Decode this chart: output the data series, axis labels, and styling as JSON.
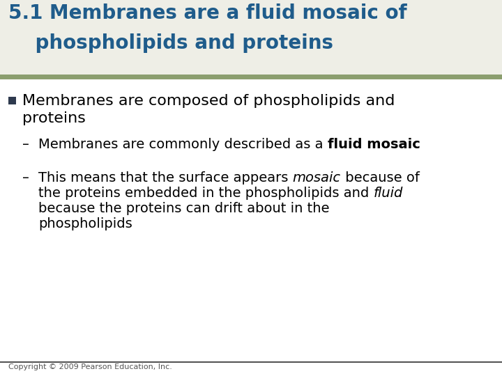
{
  "title_line1": "5.1 Membranes are a fluid mosaic of",
  "title_line2": "    phospholipids and proteins",
  "title_color": "#1F5C8B",
  "title_fontsize": 20,
  "separator_color": "#8B9E6E",
  "bg_color": "#FFFFFF",
  "title_bg_color": "#EEEEE6",
  "bullet_color": "#2E3A4E",
  "bullet_fontsize": 16,
  "sub_fontsize": 14,
  "copyright": "Copyright © 2009 Pearson Education, Inc.",
  "copyright_fontsize": 8,
  "bottom_line_color": "#555555",
  "sub1_plain": "Membranes are commonly described as a ",
  "sub1_bold": "fluid mosaic",
  "sub2_line1_p1": "This means that the surface appears ",
  "sub2_line1_i1": "mosaic",
  "sub2_line1_p2": " because of",
  "sub2_line2_p1": "the proteins embedded in the phospholipids and ",
  "sub2_line2_i1": "fluid",
  "sub2_line3": "because the proteins can drift about in the",
  "sub2_line4": "phospholipids"
}
